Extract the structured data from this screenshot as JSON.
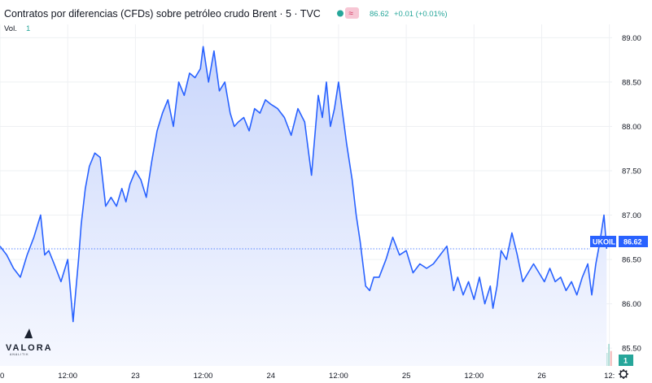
{
  "header": {
    "title": "Contratos por diferencias (CFDs) sobre petróleo crudo Brent · 5 · TVC",
    "last_value": "86.62",
    "change": "+0.01 (+0.01%)",
    "vol_label": "Vol.",
    "vol_value": "1"
  },
  "price_label": {
    "ticker": "UKOIL",
    "value": "86.62"
  },
  "volume_badge": "1",
  "logo": {
    "name": "VALORA",
    "sub": "ANALITIK"
  },
  "colors": {
    "line": "#2962ff",
    "area_top": "#c9d6fb",
    "area_bottom": "#f6f8ff",
    "vol_up": "#9fd6cf",
    "vol_down": "#f1a9a8",
    "badge": "#2962ff",
    "vol_badge": "#26a69a"
  },
  "chart_data": {
    "type": "area",
    "title": "Contratos por diferencias (CFDs) sobre petróleo crudo Brent · 5 · TVC",
    "xlabel": "",
    "ylabel": "",
    "ylim": [
      85.3,
      89.15
    ],
    "y_ticks": [
      "89.00",
      "88.50",
      "88.00",
      "87.50",
      "87.00",
      "86.50",
      "86.00",
      "85.50"
    ],
    "x_ticks": [
      "0",
      "12:00",
      "23",
      "12:00",
      "24",
      "12:00",
      "25",
      "12:00",
      "26",
      "12:"
    ],
    "x_tick_pos": [
      0,
      0.5,
      1,
      1.5,
      2,
      2.5,
      3,
      3.5,
      4,
      4.5
    ],
    "xlim": [
      0,
      4.52
    ],
    "last_price": 86.62,
    "grid": true,
    "series": [
      {
        "x": [
          0,
          0.05,
          0.1,
          0.15,
          0.2,
          0.25,
          0.3,
          0.33,
          0.36,
          0.4,
          0.45,
          0.5,
          0.54,
          0.58,
          0.6,
          0.63,
          0.66,
          0.7,
          0.74,
          0.78,
          0.82,
          0.86,
          0.9,
          0.93,
          0.96,
          1.0,
          1.04,
          1.08,
          1.12,
          1.16,
          1.2,
          1.24,
          1.28,
          1.32,
          1.36,
          1.4,
          1.44,
          1.48,
          1.5,
          1.54,
          1.58,
          1.62,
          1.66,
          1.7,
          1.73,
          1.76,
          1.8,
          1.84,
          1.88,
          1.92,
          1.96,
          2.0,
          2.05,
          2.1,
          2.15,
          2.2,
          2.25,
          2.3,
          2.35,
          2.38,
          2.41,
          2.44,
          2.47,
          2.5,
          2.53,
          2.56,
          2.6,
          2.63,
          2.66,
          2.7,
          2.73,
          2.76,
          2.8,
          2.85,
          2.9,
          2.95,
          3.0,
          3.05,
          3.1,
          3.15,
          3.2,
          3.25,
          3.3,
          3.35,
          3.38,
          3.42,
          3.46,
          3.5,
          3.54,
          3.58,
          3.62,
          3.64,
          3.67,
          3.7,
          3.74,
          3.78,
          3.82,
          3.86,
          3.9,
          3.94,
          3.98,
          4.02,
          4.06,
          4.1,
          4.14,
          4.18,
          4.22,
          4.26,
          4.3,
          4.34,
          4.37,
          4.4,
          4.43,
          4.46,
          4.48
        ],
        "values": [
          86.65,
          86.55,
          86.4,
          86.3,
          86.55,
          86.75,
          87.0,
          86.55,
          86.6,
          86.45,
          86.25,
          86.5,
          85.8,
          86.5,
          86.9,
          87.3,
          87.55,
          87.7,
          87.65,
          87.1,
          87.2,
          87.1,
          87.3,
          87.15,
          87.35,
          87.5,
          87.4,
          87.2,
          87.6,
          87.95,
          88.15,
          88.3,
          88.0,
          88.5,
          88.35,
          88.6,
          88.55,
          88.65,
          88.9,
          88.5,
          88.85,
          88.4,
          88.5,
          88.15,
          88.0,
          88.05,
          88.1,
          87.95,
          88.2,
          88.15,
          88.3,
          88.25,
          88.2,
          88.1,
          87.9,
          88.2,
          88.05,
          87.45,
          88.35,
          88.1,
          88.5,
          88.0,
          88.2,
          88.5,
          88.15,
          87.8,
          87.4,
          87.0,
          86.7,
          86.2,
          86.15,
          86.3,
          86.3,
          86.5,
          86.75,
          86.55,
          86.6,
          86.35,
          86.45,
          86.4,
          86.45,
          86.55,
          86.65,
          86.15,
          86.3,
          86.1,
          86.25,
          86.05,
          86.3,
          86.0,
          86.2,
          85.95,
          86.2,
          86.6,
          86.5,
          86.8,
          86.55,
          86.25,
          86.35,
          86.45,
          86.35,
          86.25,
          86.4,
          86.25,
          86.3,
          86.15,
          86.25,
          86.1,
          86.3,
          86.45,
          86.1,
          86.45,
          86.7,
          87.0,
          86.62
        ]
      }
    ]
  }
}
